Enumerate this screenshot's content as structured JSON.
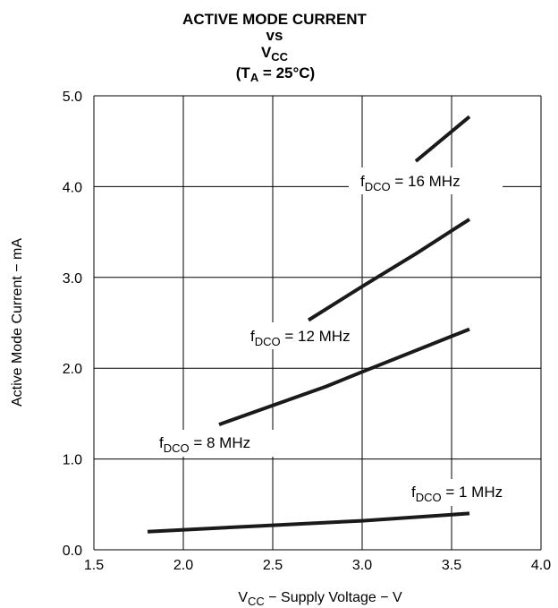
{
  "chart_data": {
    "type": "line",
    "title": {
      "line1": "ACTIVE MODE CURRENT",
      "line2": "vs",
      "line3_main": "V",
      "line3_sub": "CC",
      "line4_open": "(T",
      "line4_sub": "A",
      "line4_rest": " = 25°C)"
    },
    "xlabel": {
      "main": "V",
      "sub": "CC",
      "rest": " − Supply Voltage − V"
    },
    "ylabel": "Active Mode Current − mA",
    "xlim": [
      1.5,
      4.0
    ],
    "ylim": [
      0.0,
      5.0
    ],
    "x_ticks": [
      1.5,
      2.0,
      2.5,
      3.0,
      3.5,
      4.0
    ],
    "x_tick_labels": [
      "1.5",
      "2.0",
      "2.5",
      "3.0",
      "3.5",
      "4.0"
    ],
    "y_ticks": [
      0.0,
      1.0,
      2.0,
      3.0,
      4.0,
      5.0
    ],
    "y_tick_labels": [
      "0.0",
      "1.0",
      "2.0",
      "3.0",
      "4.0",
      "5.0"
    ],
    "grid": true,
    "line_color": "#1a1a1a",
    "series": [
      {
        "name": "f",
        "name_sub": "DCO",
        "name_rest": " = 1 MHz",
        "x": [
          1.8,
          2.4,
          3.0,
          3.6
        ],
        "y": [
          0.2,
          0.26,
          0.32,
          0.4
        ]
      },
      {
        "name": "f",
        "name_sub": "DCO",
        "name_rest": " = 8 MHz",
        "x": [
          2.2,
          2.8,
          3.0,
          3.6
        ],
        "y": [
          1.38,
          1.8,
          1.96,
          2.43
        ]
      },
      {
        "name": "f",
        "name_sub": "DCO",
        "name_rest": " = 12 MHz",
        "x": [
          2.7,
          3.0,
          3.3,
          3.6
        ],
        "y": [
          2.53,
          2.9,
          3.26,
          3.64
        ]
      },
      {
        "name": "f",
        "name_sub": "DCO",
        "name_rest": " = 16 MHz",
        "x": [
          3.3,
          3.6
        ],
        "y": [
          4.28,
          4.77
        ]
      }
    ]
  }
}
